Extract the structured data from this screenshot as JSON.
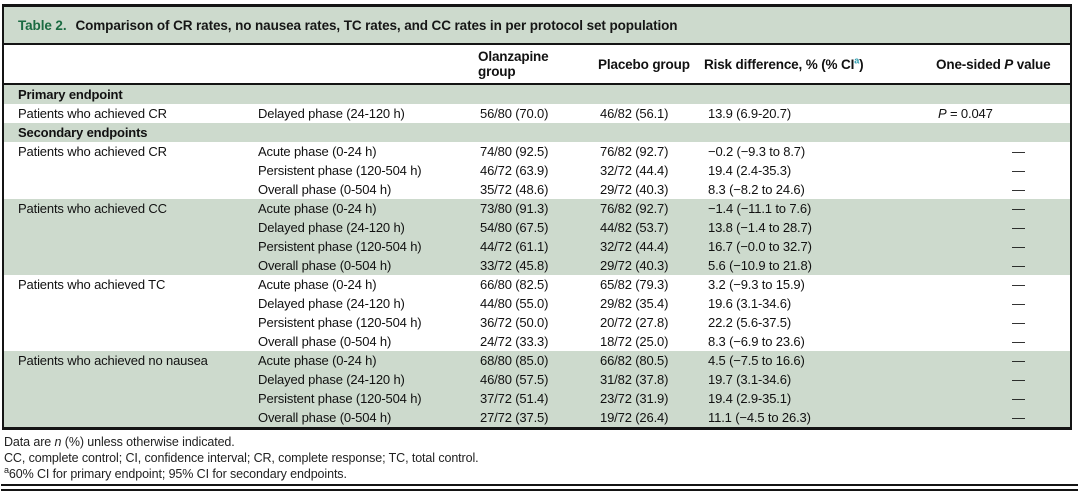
{
  "colors": {
    "sage_band": "#cddacd",
    "title_green": "#1b6b42",
    "superscript_teal": "#2b9bae",
    "border_black": "#141414"
  },
  "table": {
    "label": "Table 2.",
    "title": "Comparison of CR rates, no nausea rates, TC rates, and CC rates in per protocol set population",
    "columns": {
      "endpoint": "",
      "phase": "",
      "olanzapine": "Olanzapine group",
      "placebo": "Placebo group",
      "risk": "Risk difference, % (% CI^a^)",
      "p": "One-sided *P* value"
    },
    "rows": [
      {
        "type": "section",
        "shade": true,
        "label": "Primary endpoint"
      },
      {
        "type": "data",
        "shade": false,
        "endpoint": "Patients who achieved CR",
        "phase": "Delayed phase (24-120 h)",
        "olanzapine": "56/80 (70.0)",
        "placebo": "46/82 (56.1)",
        "risk": "13.9 (6.9-20.7)",
        "p": "*P* = 0.047"
      },
      {
        "type": "section",
        "shade": true,
        "label": "Secondary endpoints"
      },
      {
        "type": "data",
        "shade": false,
        "endpoint": "Patients who achieved CR",
        "phase": "Acute phase (0-24 h)",
        "olanzapine": "74/80 (92.5)",
        "placebo": "76/82 (92.7)",
        "risk": "−0.2 (−9.3 to 8.7)",
        "p": "—"
      },
      {
        "type": "data",
        "shade": false,
        "endpoint": "",
        "phase": "Persistent phase (120-504 h)",
        "olanzapine": "46/72 (63.9)",
        "placebo": "32/72 (44.4)",
        "risk": "19.4 (2.4-35.3)",
        "p": "—"
      },
      {
        "type": "data",
        "shade": false,
        "endpoint": "",
        "phase": "Overall phase (0-504 h)",
        "olanzapine": "35/72 (48.6)",
        "placebo": "29/72 (40.3)",
        "risk": "8.3 (−8.2 to 24.6)",
        "p": "—"
      },
      {
        "type": "data",
        "shade": true,
        "endpoint": "Patients who achieved CC",
        "phase": "Acute phase (0-24 h)",
        "olanzapine": "73/80 (91.3)",
        "placebo": "76/82 (92.7)",
        "risk": "−1.4 (−11.1 to 7.6)",
        "p": "—"
      },
      {
        "type": "data",
        "shade": true,
        "endpoint": "",
        "phase": "Delayed phase (24-120 h)",
        "olanzapine": "54/80 (67.5)",
        "placebo": "44/82 (53.7)",
        "risk": "13.8 (−1.4 to 28.7)",
        "p": "—"
      },
      {
        "type": "data",
        "shade": true,
        "endpoint": "",
        "phase": "Persistent phase (120-504 h)",
        "olanzapine": "44/72 (61.1)",
        "placebo": "32/72 (44.4)",
        "risk": "16.7 (−0.0 to 32.7)",
        "p": "—"
      },
      {
        "type": "data",
        "shade": true,
        "endpoint": "",
        "phase": "Overall phase (0-504 h)",
        "olanzapine": "33/72 (45.8)",
        "placebo": "29/72 (40.3)",
        "risk": "5.6 (−10.9 to 21.8)",
        "p": "—"
      },
      {
        "type": "data",
        "shade": false,
        "endpoint": "Patients who achieved TC",
        "phase": "Acute phase (0-24 h)",
        "olanzapine": "66/80 (82.5)",
        "placebo": "65/82 (79.3)",
        "risk": "3.2 (−9.3 to 15.9)",
        "p": "—"
      },
      {
        "type": "data",
        "shade": false,
        "endpoint": "",
        "phase": "Delayed phase (24-120 h)",
        "olanzapine": "44/80 (55.0)",
        "placebo": "29/82 (35.4)",
        "risk": "19.6 (3.1-34.6)",
        "p": "—"
      },
      {
        "type": "data",
        "shade": false,
        "endpoint": "",
        "phase": "Persistent phase (120-504 h)",
        "olanzapine": "36/72 (50.0)",
        "placebo": "20/72 (27.8)",
        "risk": "22.2 (5.6-37.5)",
        "p": "—"
      },
      {
        "type": "data",
        "shade": false,
        "endpoint": "",
        "phase": "Overall phase (0-504 h)",
        "olanzapine": "24/72 (33.3)",
        "placebo": "18/72 (25.0)",
        "risk": "8.3 (−6.9 to 23.6)",
        "p": "—"
      },
      {
        "type": "data",
        "shade": true,
        "endpoint": "Patients who achieved no nausea",
        "phase": "Acute phase (0-24 h)",
        "olanzapine": "68/80 (85.0)",
        "placebo": "66/82 (80.5)",
        "risk": "4.5 (−7.5 to 16.6)",
        "p": "—"
      },
      {
        "type": "data",
        "shade": true,
        "endpoint": "",
        "phase": "Delayed phase (24-120 h)",
        "olanzapine": "46/80 (57.5)",
        "placebo": "31/82 (37.8)",
        "risk": "19.7 (3.1-34.6)",
        "p": "—"
      },
      {
        "type": "data",
        "shade": true,
        "endpoint": "",
        "phase": "Persistent phase (120-504 h)",
        "olanzapine": "37/72 (51.4)",
        "placebo": "23/72 (31.9)",
        "risk": "19.4 (2.9-35.1)",
        "p": "—"
      },
      {
        "type": "data",
        "shade": true,
        "endpoint": "",
        "phase": "Overall phase (0-504 h)",
        "olanzapine": "27/72 (37.5)",
        "placebo": "19/72 (26.4)",
        "risk": "11.1 (−4.5 to 26.3)",
        "p": "—"
      }
    ],
    "footnotes": [
      "Data are *n* (%) unless otherwise indicated.",
      "CC, complete control; CI, confidence interval; CR, complete response; TC, total control.",
      "^a^60% CI for primary endpoint; 95% CI for secondary endpoints."
    ]
  }
}
